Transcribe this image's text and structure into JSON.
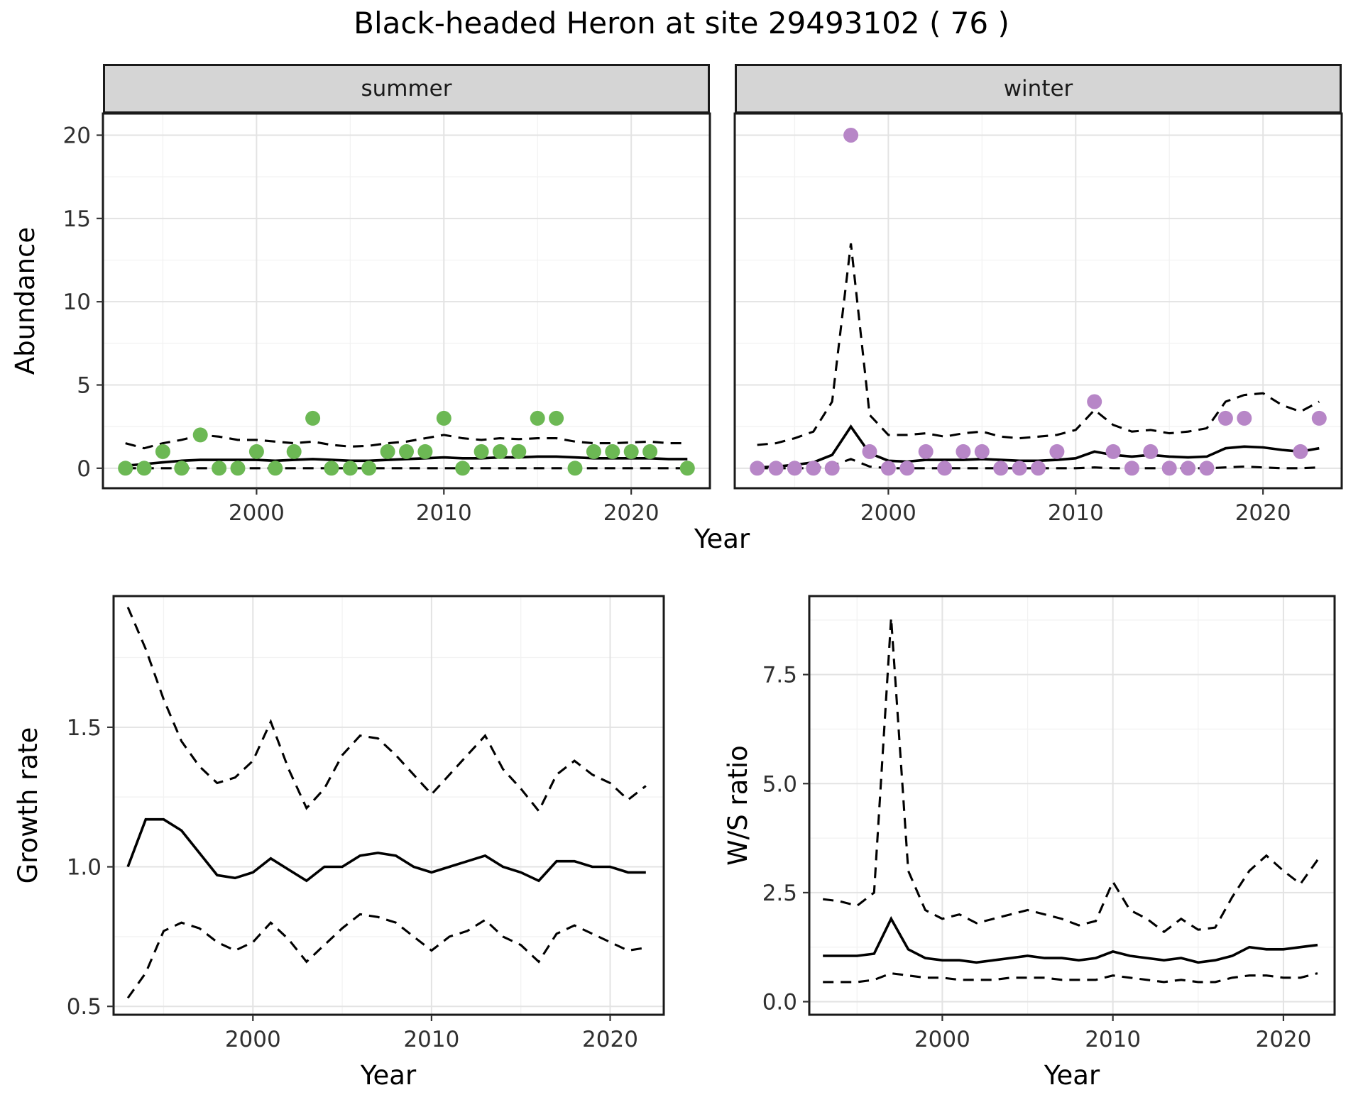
{
  "title": "Black-headed Heron at site 29493102 ( 76 )",
  "facets": [
    {
      "label": "summer"
    },
    {
      "label": "winter"
    }
  ],
  "axis_labels": {
    "abundance": "Abundance",
    "year_top": "Year",
    "growth_rate": "Growth rate",
    "year_growth": "Year",
    "ws_ratio": "W/S ratio",
    "year_ws": "Year"
  },
  "colors": {
    "summer_point": "#6cb854",
    "winter_point": "#b786c7",
    "line": "#000000",
    "grid_major": "#e3e3e3",
    "grid_minor": "#f2f2f2",
    "strip_bg": "#d5d5d5",
    "panel_border": "#1a1a1a",
    "axis_text": "#303030"
  },
  "chart_data": [
    {
      "id": "abundance-summer",
      "type": "scatter",
      "facet": "summer",
      "xlabel": "Year",
      "ylabel": "Abundance",
      "xlim": [
        1991.8,
        2024.2
      ],
      "ylim": [
        -1.2,
        21.3
      ],
      "xticks": [
        2000,
        2010,
        2020
      ],
      "xtick_labels": [
        "2000",
        "2010",
        "2020"
      ],
      "yticks": [
        0,
        5,
        10,
        15,
        20
      ],
      "ytick_labels": [
        "0",
        "5",
        "10",
        "15",
        "20"
      ],
      "point_color": "#6cb854",
      "points": {
        "x": [
          1993,
          1994,
          1995,
          1996,
          1997,
          1998,
          1999,
          2000,
          2001,
          2002,
          2003,
          2004,
          2005,
          2006,
          2007,
          2008,
          2009,
          2010,
          2011,
          2012,
          2013,
          2014,
          2015,
          2016,
          2017,
          2018,
          2019,
          2020,
          2021,
          2023
        ],
        "y": [
          0,
          0,
          1,
          0,
          2,
          0,
          0,
          1,
          0,
          1,
          3,
          0,
          0,
          0,
          1,
          1,
          1,
          3,
          0,
          1,
          1,
          1,
          3,
          3,
          0,
          1,
          1,
          1,
          1,
          0
        ]
      },
      "lines": [
        {
          "name": "fit",
          "style": "solid",
          "x": [
            1993,
            1994,
            1995,
            1996,
            1997,
            1998,
            1999,
            2000,
            2001,
            2002,
            2003,
            2004,
            2005,
            2006,
            2007,
            2008,
            2009,
            2010,
            2011,
            2012,
            2013,
            2014,
            2015,
            2016,
            2017,
            2018,
            2019,
            2020,
            2021,
            2022,
            2023
          ],
          "y": [
            0.15,
            0.25,
            0.35,
            0.45,
            0.5,
            0.5,
            0.5,
            0.5,
            0.45,
            0.5,
            0.55,
            0.5,
            0.45,
            0.45,
            0.5,
            0.55,
            0.6,
            0.65,
            0.6,
            0.6,
            0.65,
            0.65,
            0.7,
            0.7,
            0.65,
            0.6,
            0.6,
            0.6,
            0.6,
            0.55,
            0.55
          ]
        },
        {
          "name": "upper-ci",
          "style": "dashed",
          "x": [
            1993,
            1994,
            1995,
            1996,
            1997,
            1998,
            1999,
            2000,
            2001,
            2002,
            2003,
            2004,
            2005,
            2006,
            2007,
            2008,
            2009,
            2010,
            2011,
            2012,
            2013,
            2014,
            2015,
            2016,
            2017,
            2018,
            2019,
            2020,
            2021,
            2022,
            2023
          ],
          "y": [
            1.5,
            1.2,
            1.5,
            1.7,
            2.0,
            1.9,
            1.7,
            1.7,
            1.6,
            1.5,
            1.6,
            1.4,
            1.3,
            1.35,
            1.5,
            1.6,
            1.8,
            2.0,
            1.8,
            1.7,
            1.8,
            1.75,
            1.8,
            1.8,
            1.6,
            1.5,
            1.5,
            1.55,
            1.6,
            1.5,
            1.5
          ]
        },
        {
          "name": "lower-ci",
          "style": "dashed",
          "x": [
            1993,
            1994,
            1995,
            1996,
            1997,
            1998,
            1999,
            2000,
            2001,
            2002,
            2003,
            2004,
            2005,
            2006,
            2007,
            2008,
            2009,
            2010,
            2011,
            2012,
            2013,
            2014,
            2015,
            2016,
            2017,
            2018,
            2019,
            2020,
            2021,
            2022,
            2023
          ],
          "y": [
            0,
            0,
            0,
            0,
            0,
            0,
            0,
            0,
            0,
            0,
            0,
            0,
            0,
            0,
            0,
            0,
            0,
            0,
            0,
            0,
            0,
            0,
            0,
            0,
            0,
            0,
            0,
            0,
            0,
            0,
            0
          ]
        }
      ]
    },
    {
      "id": "abundance-winter",
      "type": "scatter",
      "facet": "winter",
      "xlabel": "Year",
      "ylabel": "Abundance",
      "xlim": [
        1991.8,
        2024.2
      ],
      "ylim": [
        -1.2,
        21.3
      ],
      "xticks": [
        2000,
        2010,
        2020
      ],
      "xtick_labels": [
        "2000",
        "2010",
        "2020"
      ],
      "yticks": [
        0,
        5,
        10,
        15,
        20
      ],
      "ytick_labels": [
        "0",
        "5",
        "10",
        "15",
        "20"
      ],
      "point_color": "#b786c7",
      "points": {
        "x": [
          1993,
          1994,
          1995,
          1996,
          1997,
          1998,
          1999,
          2000,
          2001,
          2002,
          2003,
          2004,
          2005,
          2006,
          2007,
          2008,
          2009,
          2011,
          2012,
          2013,
          2014,
          2015,
          2016,
          2017,
          2018,
          2019,
          2022,
          2023
        ],
        "y": [
          0,
          0,
          0,
          0,
          0,
          20,
          1,
          0,
          0,
          1,
          0,
          1,
          1,
          0,
          0,
          0,
          1,
          4,
          1,
          0,
          1,
          0,
          0,
          0,
          3,
          3,
          1,
          3
        ]
      },
      "lines": [
        {
          "name": "fit",
          "style": "solid",
          "x": [
            1993,
            1994,
            1995,
            1996,
            1997,
            1998,
            1999,
            2000,
            2001,
            2002,
            2003,
            2004,
            2005,
            2006,
            2007,
            2008,
            2009,
            2010,
            2011,
            2012,
            2013,
            2014,
            2015,
            2016,
            2017,
            2018,
            2019,
            2020,
            2021,
            2022,
            2023
          ],
          "y": [
            0.05,
            0.1,
            0.2,
            0.35,
            0.8,
            2.5,
            0.9,
            0.45,
            0.4,
            0.5,
            0.5,
            0.5,
            0.55,
            0.5,
            0.45,
            0.45,
            0.5,
            0.6,
            1.0,
            0.8,
            0.7,
            0.8,
            0.7,
            0.65,
            0.7,
            1.2,
            1.3,
            1.25,
            1.1,
            1.0,
            1.2
          ]
        },
        {
          "name": "upper-ci",
          "style": "dashed",
          "x": [
            1993,
            1994,
            1995,
            1996,
            1997,
            1998,
            1999,
            2000,
            2001,
            2002,
            2003,
            2004,
            2005,
            2006,
            2007,
            2008,
            2009,
            2010,
            2011,
            2012,
            2013,
            2014,
            2015,
            2016,
            2017,
            2018,
            2019,
            2020,
            2021,
            2022,
            2023
          ],
          "y": [
            1.4,
            1.5,
            1.8,
            2.2,
            4.0,
            13.5,
            3.2,
            2.0,
            2.0,
            2.1,
            1.9,
            2.1,
            2.2,
            1.9,
            1.8,
            1.9,
            2.0,
            2.3,
            3.5,
            2.6,
            2.2,
            2.3,
            2.1,
            2.2,
            2.4,
            4.0,
            4.4,
            4.5,
            3.8,
            3.4,
            4.0
          ]
        },
        {
          "name": "lower-ci",
          "style": "dashed",
          "x": [
            1993,
            1994,
            1995,
            1996,
            1997,
            1998,
            1999,
            2000,
            2001,
            2002,
            2003,
            2004,
            2005,
            2006,
            2007,
            2008,
            2009,
            2010,
            2011,
            2012,
            2013,
            2014,
            2015,
            2016,
            2017,
            2018,
            2019,
            2020,
            2021,
            2022,
            2023
          ],
          "y": [
            0,
            0,
            0,
            0,
            0.15,
            0.55,
            0.1,
            0,
            0,
            0,
            0,
            0,
            0,
            0,
            0,
            0,
            0,
            0,
            0.05,
            0,
            0,
            0,
            0,
            0,
            0,
            0.05,
            0.1,
            0.05,
            0,
            0,
            0.05
          ]
        }
      ]
    },
    {
      "id": "growth-rate",
      "type": "line",
      "xlabel": "Year",
      "ylabel": "Growth rate",
      "xlim": [
        1992.2,
        2023.0
      ],
      "ylim": [
        0.47,
        1.97
      ],
      "xticks": [
        2000,
        2010,
        2020
      ],
      "xtick_labels": [
        "2000",
        "2010",
        "2020"
      ],
      "yticks": [
        0.5,
        1.0,
        1.5
      ],
      "ytick_labels": [
        "0.5",
        "1.0",
        "1.5"
      ],
      "lines": [
        {
          "name": "fit",
          "style": "solid",
          "x": [
            1993,
            1994,
            1995,
            1996,
            1997,
            1998,
            1999,
            2000,
            2001,
            2002,
            2003,
            2004,
            2005,
            2006,
            2007,
            2008,
            2009,
            2010,
            2011,
            2012,
            2013,
            2014,
            2015,
            2016,
            2017,
            2018,
            2019,
            2020,
            2021,
            2022
          ],
          "y": [
            1.0,
            1.17,
            1.17,
            1.13,
            1.05,
            0.97,
            0.96,
            0.98,
            1.03,
            0.99,
            0.95,
            1.0,
            1.0,
            1.04,
            1.05,
            1.04,
            1.0,
            0.98,
            1.0,
            1.02,
            1.04,
            1.0,
            0.98,
            0.95,
            1.02,
            1.02,
            1.0,
            1.0,
            0.98,
            0.98
          ]
        },
        {
          "name": "upper-ci",
          "style": "dashed",
          "x": [
            1993,
            1994,
            1995,
            1996,
            1997,
            1998,
            1999,
            2000,
            2001,
            2002,
            2003,
            2004,
            2005,
            2006,
            2007,
            2008,
            2009,
            2010,
            2011,
            2012,
            2013,
            2014,
            2015,
            2016,
            2017,
            2018,
            2019,
            2020,
            2021,
            2022
          ],
          "y": [
            1.93,
            1.78,
            1.6,
            1.45,
            1.36,
            1.3,
            1.32,
            1.38,
            1.52,
            1.35,
            1.21,
            1.28,
            1.4,
            1.47,
            1.46,
            1.4,
            1.33,
            1.26,
            1.33,
            1.4,
            1.47,
            1.35,
            1.28,
            1.2,
            1.33,
            1.38,
            1.33,
            1.3,
            1.24,
            1.29
          ]
        },
        {
          "name": "lower-ci",
          "style": "dashed",
          "x": [
            1993,
            1994,
            1995,
            1996,
            1997,
            1998,
            1999,
            2000,
            2001,
            2002,
            2003,
            2004,
            2005,
            2006,
            2007,
            2008,
            2009,
            2010,
            2011,
            2012,
            2013,
            2014,
            2015,
            2016,
            2017,
            2018,
            2019,
            2020,
            2021,
            2022
          ],
          "y": [
            0.53,
            0.62,
            0.77,
            0.8,
            0.78,
            0.73,
            0.7,
            0.73,
            0.8,
            0.74,
            0.66,
            0.72,
            0.78,
            0.83,
            0.82,
            0.8,
            0.75,
            0.7,
            0.75,
            0.77,
            0.81,
            0.75,
            0.72,
            0.66,
            0.76,
            0.79,
            0.76,
            0.73,
            0.7,
            0.71
          ]
        }
      ]
    },
    {
      "id": "ws-ratio",
      "type": "line",
      "xlabel": "Year",
      "ylabel": "W/S ratio",
      "xlim": [
        1992.2,
        2023.0
      ],
      "ylim": [
        -0.3,
        9.3
      ],
      "xticks": [
        2000,
        2010,
        2020
      ],
      "xtick_labels": [
        "2000",
        "2010",
        "2020"
      ],
      "yticks": [
        0,
        2.5,
        5.0,
        7.5
      ],
      "ytick_labels": [
        "0.0",
        "2.5",
        "5.0",
        "7.5"
      ],
      "lines": [
        {
          "name": "fit",
          "style": "solid",
          "x": [
            1993,
            1994,
            1995,
            1996,
            1997,
            1998,
            1999,
            2000,
            2001,
            2002,
            2003,
            2004,
            2005,
            2006,
            2007,
            2008,
            2009,
            2010,
            2011,
            2012,
            2013,
            2014,
            2015,
            2016,
            2017,
            2018,
            2019,
            2020,
            2021,
            2022
          ],
          "y": [
            1.05,
            1.05,
            1.05,
            1.1,
            1.9,
            1.2,
            1.0,
            0.95,
            0.95,
            0.9,
            0.95,
            1.0,
            1.05,
            1.0,
            1.0,
            0.95,
            1.0,
            1.15,
            1.05,
            1.0,
            0.95,
            1.0,
            0.9,
            0.95,
            1.05,
            1.25,
            1.2,
            1.2,
            1.25,
            1.3
          ]
        },
        {
          "name": "upper-ci",
          "style": "dashed",
          "x": [
            1993,
            1994,
            1995,
            1996,
            1997,
            1998,
            1999,
            2000,
            2001,
            2002,
            2003,
            2004,
            2005,
            2006,
            2007,
            2008,
            2009,
            2010,
            2011,
            2012,
            2013,
            2014,
            2015,
            2016,
            2017,
            2018,
            2019,
            2020,
            2021,
            2022
          ],
          "y": [
            2.35,
            2.3,
            2.2,
            2.5,
            8.8,
            3.0,
            2.1,
            1.9,
            2.0,
            1.8,
            1.9,
            2.0,
            2.1,
            2.0,
            1.9,
            1.75,
            1.85,
            2.75,
            2.1,
            1.9,
            1.6,
            1.9,
            1.65,
            1.7,
            2.4,
            3.0,
            3.35,
            3.0,
            2.7,
            3.25
          ]
        },
        {
          "name": "lower-ci",
          "style": "dashed",
          "x": [
            1993,
            1994,
            1995,
            1996,
            1997,
            1998,
            1999,
            2000,
            2001,
            2002,
            2003,
            2004,
            2005,
            2006,
            2007,
            2008,
            2009,
            2010,
            2011,
            2012,
            2013,
            2014,
            2015,
            2016,
            2017,
            2018,
            2019,
            2020,
            2021,
            2022
          ],
          "y": [
            0.45,
            0.45,
            0.45,
            0.5,
            0.65,
            0.6,
            0.55,
            0.55,
            0.5,
            0.5,
            0.5,
            0.55,
            0.55,
            0.55,
            0.5,
            0.5,
            0.5,
            0.6,
            0.55,
            0.5,
            0.45,
            0.5,
            0.45,
            0.45,
            0.55,
            0.6,
            0.6,
            0.55,
            0.55,
            0.65
          ]
        }
      ]
    }
  ]
}
